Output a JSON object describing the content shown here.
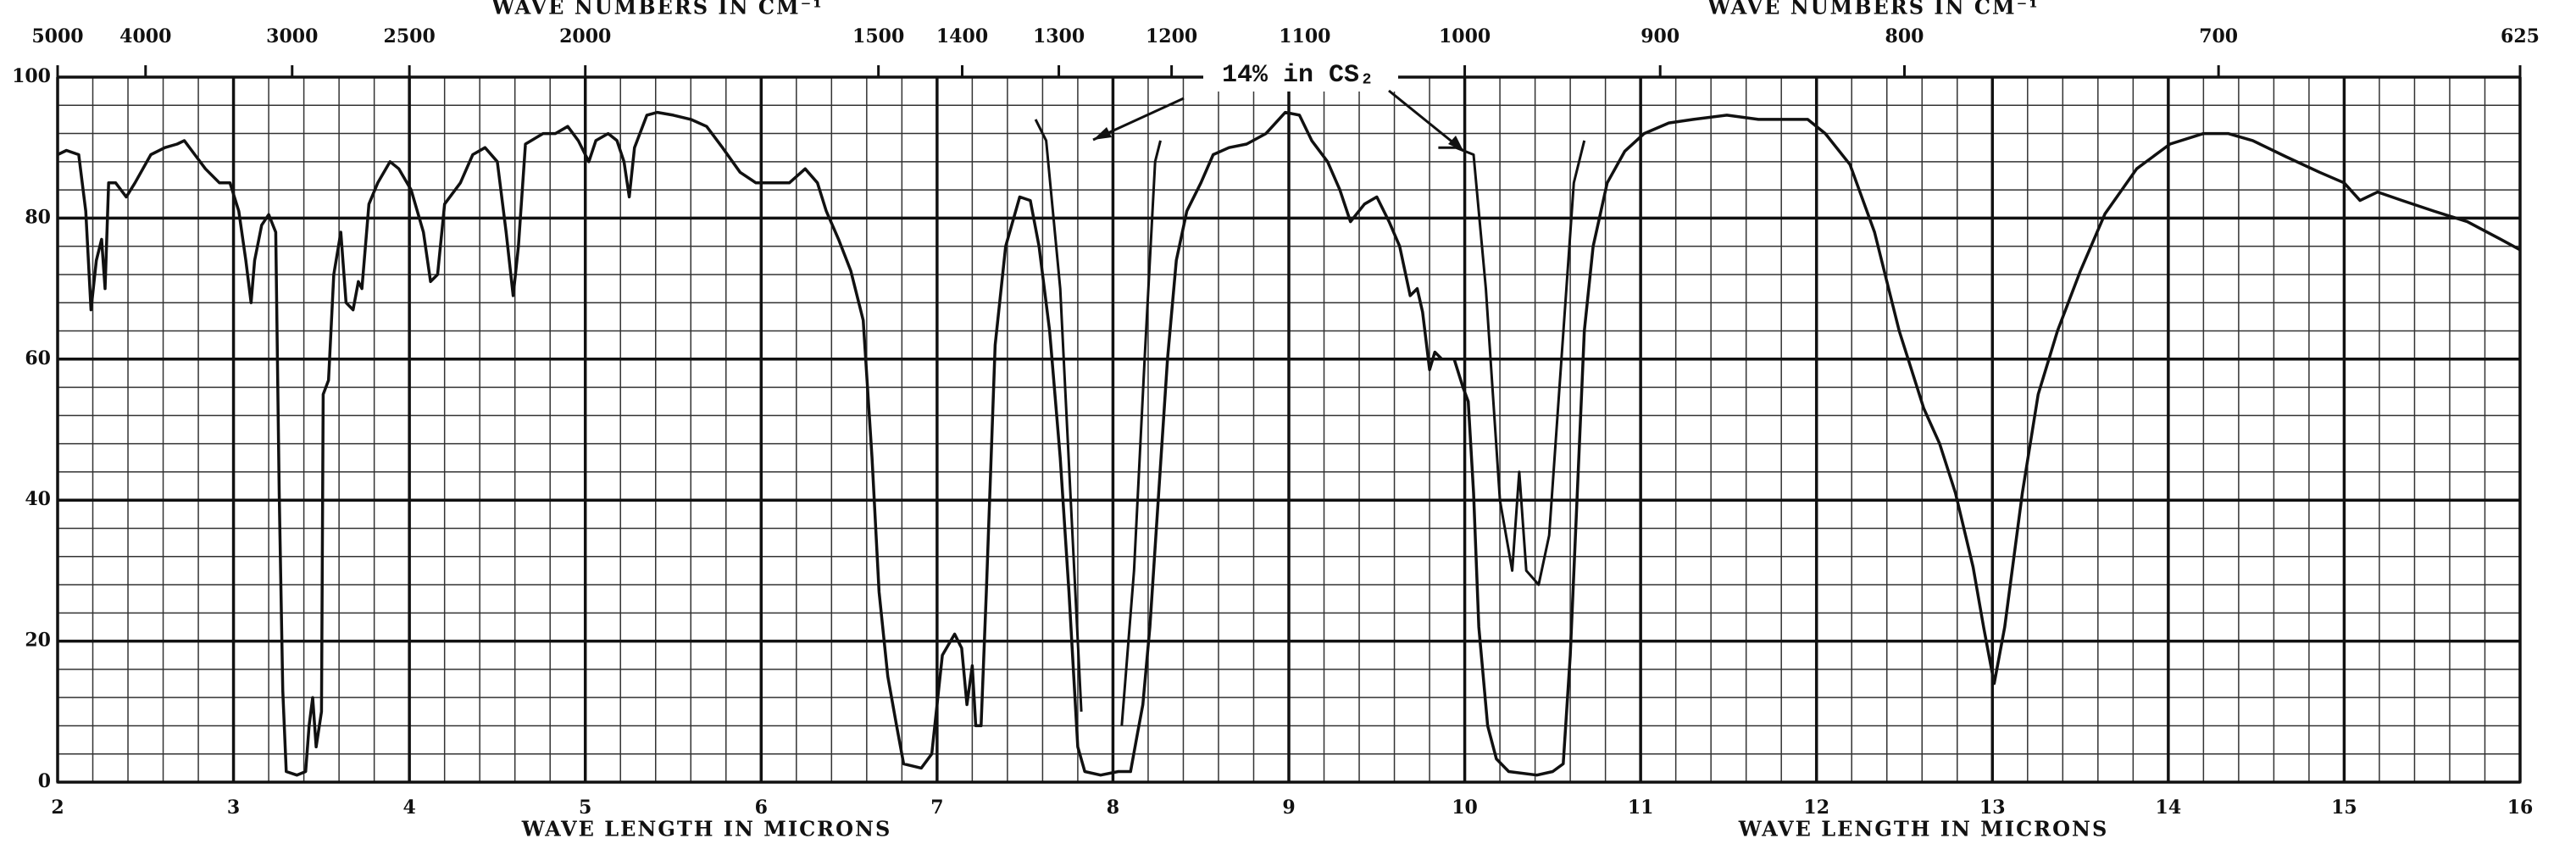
{
  "chart_data": {
    "type": "line",
    "x_label": "WAVE LENGTH IN MICRONS",
    "x2_label": "WAVE NUMBERS IN CM⁻¹",
    "annotation": "14% in CS₂",
    "color": "#111111",
    "grid": true,
    "xlim": [
      2,
      16
    ],
    "xticks": [
      2,
      3,
      4,
      5,
      6,
      7,
      8,
      9,
      10,
      11,
      12,
      13,
      14,
      15,
      16
    ],
    "x2lim": [
      5000,
      625
    ],
    "x2ticks": [
      5000,
      4000,
      3000,
      2500,
      2000,
      1500,
      1400,
      1300,
      1200,
      1100,
      1000,
      900,
      800,
      700,
      625
    ],
    "ylim": [
      0,
      100
    ],
    "yticks": [
      0,
      20,
      40,
      60,
      80,
      100
    ],
    "x": [
      2.0,
      2.05,
      2.12,
      2.16,
      2.19,
      2.22,
      2.25,
      2.27,
      2.29,
      2.33,
      2.39,
      2.44,
      2.53,
      2.61,
      2.68,
      2.72,
      2.78,
      2.84,
      2.92,
      2.98,
      3.03,
      3.07,
      3.1,
      3.12,
      3.16,
      3.2,
      3.24,
      3.26,
      3.28,
      3.3,
      3.36,
      3.41,
      3.43,
      3.45,
      3.47,
      3.5,
      3.51,
      3.54,
      3.57,
      3.61,
      3.64,
      3.68,
      3.71,
      3.73,
      3.77,
      3.82,
      3.89,
      3.94,
      4.01,
      4.08,
      4.12,
      4.16,
      4.2,
      4.29,
      4.36,
      4.43,
      4.5,
      4.55,
      4.59,
      4.62,
      4.66,
      4.76,
      4.83,
      4.9,
      4.96,
      5.02,
      5.06,
      5.13,
      5.18,
      5.22,
      5.25,
      5.28,
      5.35,
      5.41,
      5.5,
      5.6,
      5.69,
      5.78,
      5.88,
      5.97,
      6.07,
      6.16,
      6.25,
      6.32,
      6.37,
      6.44,
      6.51,
      6.58,
      6.63,
      6.67,
      6.72,
      6.77,
      6.81,
      6.91,
      6.97,
      7.03,
      7.1,
      7.14,
      7.17,
      7.2,
      7.22,
      7.25,
      7.28,
      7.33,
      7.39,
      7.47,
      7.53,
      7.58,
      7.64,
      7.7,
      7.75,
      7.8,
      7.84,
      7.93,
      8.03,
      8.1,
      8.14,
      8.17,
      8.21,
      8.26,
      8.31,
      8.36,
      8.42,
      8.5,
      8.57,
      8.66,
      8.76,
      8.87,
      8.98,
      9.06,
      9.13,
      9.22,
      9.29,
      9.35,
      9.43,
      9.5,
      9.57,
      9.63,
      9.69,
      9.73,
      9.76,
      9.8,
      9.83,
      9.87,
      9.94,
      9.99,
      10.02,
      10.05,
      10.08,
      10.13,
      10.18,
      10.25,
      10.41,
      10.5,
      10.56,
      10.6,
      10.64,
      10.68,
      10.73,
      10.81,
      10.91,
      11.02,
      11.16,
      11.3,
      11.49,
      11.67,
      11.86,
      11.95,
      12.05,
      12.19,
      12.33,
      12.47,
      12.61,
      12.7,
      12.79,
      12.89,
      12.95,
      13.01,
      13.07,
      13.17,
      13.26,
      13.37,
      13.5,
      13.64,
      13.82,
      14.01,
      14.2,
      14.34,
      14.48,
      14.67,
      14.86,
      15.0,
      15.09,
      15.19,
      15.33,
      15.51,
      15.7,
      15.89,
      16.0
    ],
    "values": [
      89,
      89.6,
      89,
      81,
      67,
      74,
      77,
      70,
      85,
      85,
      83,
      85,
      89,
      90,
      90.5,
      91,
      89,
      87,
      85,
      85,
      81,
      74,
      68,
      74,
      79,
      80.5,
      78,
      41,
      13,
      1.5,
      1,
      1.5,
      8,
      12,
      5,
      10,
      55,
      57,
      72,
      78,
      68,
      67,
      71,
      70,
      82,
      85,
      88,
      87,
      84,
      78,
      71,
      72,
      82,
      85,
      89,
      90,
      88,
      78,
      69,
      76,
      90.5,
      92,
      92,
      93,
      91,
      88,
      91,
      92,
      91,
      88,
      83,
      90,
      94.6,
      95,
      94.6,
      94,
      93,
      90,
      86.5,
      85,
      85,
      85,
      87,
      85,
      81,
      77,
      72.5,
      65.5,
      46,
      27,
      15,
      8,
      2.6,
      2,
      4,
      18,
      21,
      19,
      11,
      16.5,
      8,
      8,
      27,
      62,
      76,
      83,
      82.5,
      76,
      64,
      46,
      27,
      5,
      1.5,
      1,
      1.5,
      1.5,
      7,
      11,
      22,
      41,
      60,
      74,
      81,
      85,
      89,
      90,
      90.5,
      92,
      95,
      94.6,
      91,
      88,
      84,
      79.5,
      82,
      83,
      79.5,
      76,
      69,
      70,
      66.7,
      58.5,
      61,
      60,
      60,
      56,
      54,
      41,
      22,
      8,
      3.3,
      1.5,
      1,
      1.5,
      2.6,
      18,
      41,
      64,
      76,
      85,
      89.5,
      92,
      93.5,
      94,
      94.6,
      94,
      94,
      94,
      92,
      87.6,
      78,
      64,
      53,
      48,
      41,
      30.5,
      22,
      14,
      22,
      41,
      55,
      64,
      72.5,
      80.6,
      87,
      90.5,
      92,
      92,
      91,
      88.7,
      86.5,
      85,
      82.5,
      83.7,
      82.5,
      81,
      79.5,
      77,
      75.5
    ],
    "overlay": {
      "x": [
        7.56,
        7.62,
        7.7,
        7.76,
        7.82,
        null,
        8.05,
        8.12,
        8.18,
        8.24,
        8.27,
        null,
        9.85,
        9.95,
        10.05,
        10.12,
        10.2,
        10.27,
        10.31,
        10.35,
        10.42,
        10.48,
        10.55,
        10.62,
        10.68
      ],
      "values": [
        94,
        91,
        70,
        40,
        10,
        null,
        8,
        30,
        60,
        88,
        91,
        null,
        90,
        90,
        89,
        70,
        40,
        30,
        44,
        30,
        28,
        35,
        60,
        85,
        91
      ]
    }
  }
}
